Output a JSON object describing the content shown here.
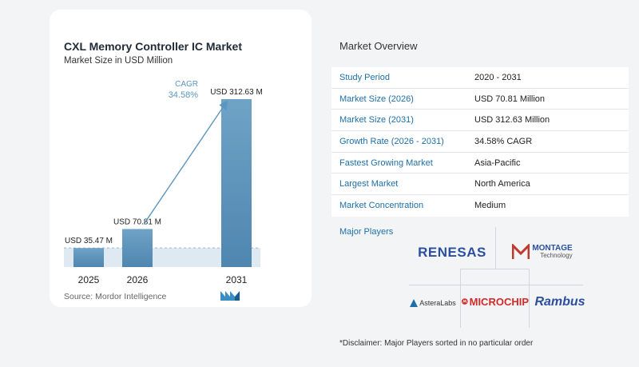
{
  "chart_data": {
    "type": "bar",
    "title": "CXL Memory Controller IC Market",
    "subtitle": "Market Size in USD Million",
    "categories": [
      "2025",
      "2026",
      "2031"
    ],
    "values": [
      35.47,
      70.81,
      312.63
    ],
    "data_labels": [
      "USD 35.47 M",
      "USD 70.81 M",
      "USD 312.63 M"
    ],
    "cagr_label": "CAGR",
    "cagr_value": "34.58%",
    "colors": {
      "bar_top": "#6fa3c6",
      "bar_bottom": "#4f86b0",
      "arrow": "#5a96c0",
      "cagr_text": "#5a96c0",
      "baseline_fill": "#dfe9f1"
    }
  },
  "source": "Source:  Mordor Intelligence",
  "logo_icon": "mordor-intelligence-logo-icon",
  "overview": {
    "title": "Market Overview",
    "rows": [
      {
        "key": "Study Period",
        "value": "2020 - 2031"
      },
      {
        "key": "Market Size (2026)",
        "value": "USD 70.81 Million"
      },
      {
        "key": "Market Size (2031)",
        "value": "USD 312.63 Million"
      },
      {
        "key": "Growth Rate (2026 - 2031)",
        "value": "34.58% CAGR"
      },
      {
        "key": "Fastest Growing Market",
        "value": "Asia-Pacific"
      },
      {
        "key": "Largest Market",
        "value": "North America"
      },
      {
        "key": "Market Concentration",
        "value": "Medium"
      }
    ]
  },
  "major_players": {
    "label": "Major Players",
    "logos": {
      "renesas": "RENESAS",
      "montage": "MONTAGE",
      "montage_sub": "Technology",
      "astera": "AsteraLabs",
      "microchip": "MICROCHIP",
      "rambus": "Rambus"
    }
  },
  "disclaimer": "*Disclaimer: Major Players sorted in no particular order"
}
